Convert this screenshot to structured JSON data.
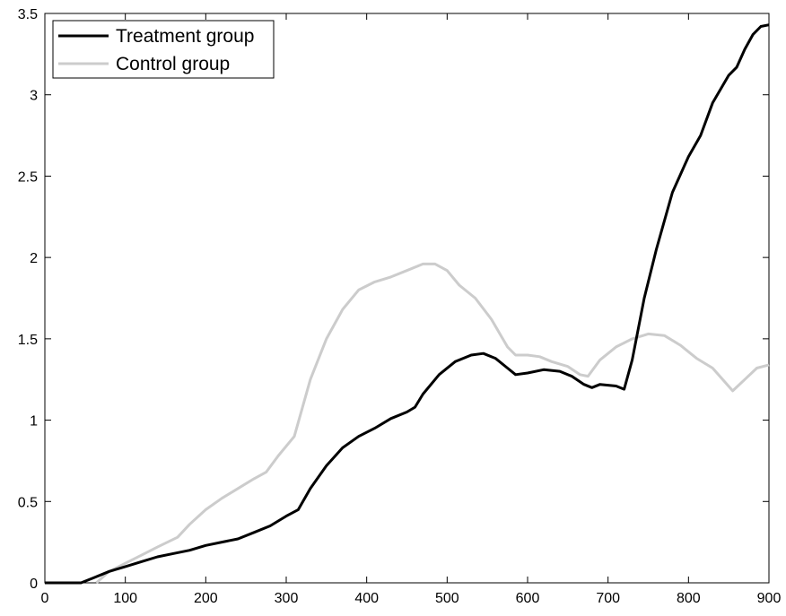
{
  "chart_data": {
    "type": "line",
    "xlim": [
      0,
      900
    ],
    "xticks": [
      0,
      100,
      200,
      300,
      400,
      500,
      600,
      700,
      800,
      900
    ],
    "ylim": [
      0,
      3.5
    ],
    "yticks": [
      0,
      0.5,
      1,
      1.5,
      2,
      2.5,
      3,
      3.5
    ],
    "legend": "top-left",
    "series": [
      {
        "name": "Treatment group",
        "color": "#000000",
        "x": [
          0,
          20,
          45,
          60,
          80,
          100,
          120,
          140,
          160,
          180,
          200,
          220,
          240,
          260,
          280,
          300,
          315,
          330,
          350,
          370,
          390,
          410,
          430,
          450,
          460,
          470,
          490,
          510,
          530,
          545,
          560,
          575,
          585,
          600,
          620,
          640,
          655,
          670,
          680,
          690,
          710,
          720,
          730,
          745,
          760,
          780,
          800,
          815,
          830,
          850,
          860,
          870,
          880,
          890,
          900
        ],
        "values": [
          0,
          0,
          0,
          0.03,
          0.07,
          0.1,
          0.13,
          0.16,
          0.18,
          0.2,
          0.23,
          0.25,
          0.27,
          0.31,
          0.35,
          0.41,
          0.45,
          0.58,
          0.72,
          0.83,
          0.9,
          0.95,
          1.01,
          1.05,
          1.08,
          1.16,
          1.28,
          1.36,
          1.4,
          1.41,
          1.38,
          1.32,
          1.28,
          1.29,
          1.31,
          1.3,
          1.27,
          1.22,
          1.2,
          1.22,
          1.21,
          1.19,
          1.37,
          1.75,
          2.05,
          2.4,
          2.62,
          2.75,
          2.95,
          3.12,
          3.17,
          3.28,
          3.37,
          3.42,
          3.43
        ]
      },
      {
        "name": "Control group",
        "color": "#cccccc",
        "x": [
          64,
          80,
          100,
          120,
          140,
          165,
          180,
          200,
          220,
          240,
          260,
          275,
          290,
          310,
          330,
          350,
          370,
          390,
          410,
          430,
          450,
          470,
          485,
          500,
          515,
          535,
          555,
          575,
          585,
          600,
          615,
          630,
          650,
          665,
          675,
          690,
          710,
          730,
          750,
          770,
          790,
          810,
          830,
          855,
          870,
          885,
          900
        ],
        "values": [
          0,
          0.07,
          0.12,
          0.17,
          0.22,
          0.28,
          0.36,
          0.45,
          0.52,
          0.58,
          0.64,
          0.68,
          0.78,
          0.9,
          1.25,
          1.5,
          1.68,
          1.8,
          1.85,
          1.88,
          1.92,
          1.96,
          1.96,
          1.92,
          1.83,
          1.75,
          1.62,
          1.45,
          1.4,
          1.4,
          1.39,
          1.36,
          1.33,
          1.28,
          1.27,
          1.37,
          1.45,
          1.5,
          1.53,
          1.52,
          1.46,
          1.38,
          1.32,
          1.18,
          1.25,
          1.32,
          1.34
        ]
      }
    ]
  }
}
